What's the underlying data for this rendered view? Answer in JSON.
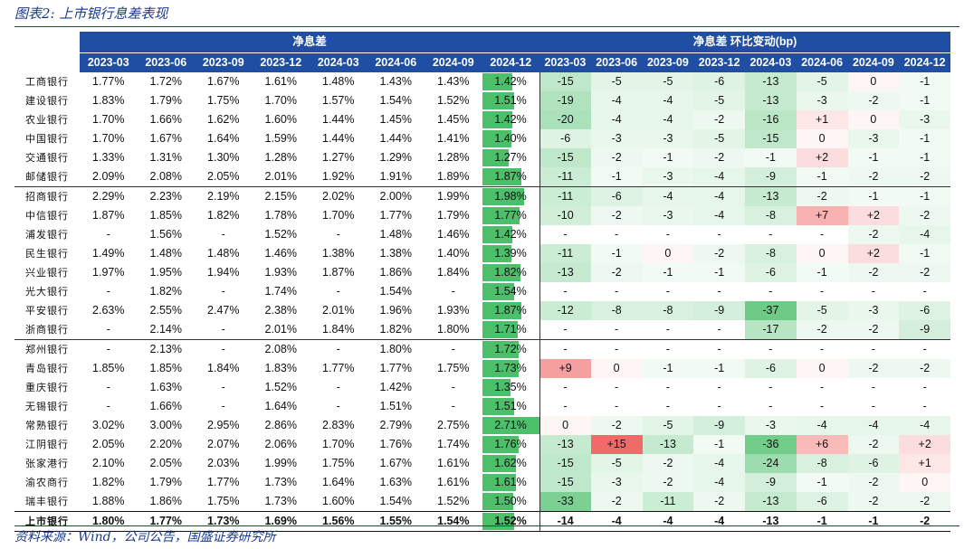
{
  "title": "图表2: 上市银行息差表现",
  "source": "资料来源：Wind，公司公告，国盛证券研究所",
  "header": {
    "nim_group": "净息差",
    "chg_group": "净息差 环比变动(bp)",
    "periods": [
      "2023-03",
      "2023-06",
      "2023-09",
      "2023-12",
      "2024-03",
      "2024-06",
      "2024-09",
      "2024-12"
    ]
  },
  "colors": {
    "header": "#1f4ea3",
    "bar": "#4cbf6b",
    "neg": "#4cbf6b",
    "pos": "#f05a5a"
  },
  "bar_scale": {
    "max_pct": 2.71
  },
  "groups": [
    [
      {
        "bank": "工商银行",
        "nim": [
          "1.77%",
          "1.72%",
          "1.67%",
          "1.61%",
          "1.48%",
          "1.43%",
          "1.43%",
          "1.42%"
        ],
        "chg": [
          "-15",
          "-5",
          "-5",
          "-6",
          "-13",
          "-5",
          "0",
          "-1"
        ]
      },
      {
        "bank": "建设银行",
        "nim": [
          "1.83%",
          "1.79%",
          "1.75%",
          "1.70%",
          "1.57%",
          "1.54%",
          "1.52%",
          "1.51%"
        ],
        "chg": [
          "-19",
          "-4",
          "-4",
          "-5",
          "-13",
          "-3",
          "-2",
          "-1"
        ]
      },
      {
        "bank": "农业银行",
        "nim": [
          "1.70%",
          "1.66%",
          "1.62%",
          "1.60%",
          "1.44%",
          "1.45%",
          "1.45%",
          "1.42%"
        ],
        "chg": [
          "-20",
          "-4",
          "-4",
          "-2",
          "-16",
          "+1",
          "0",
          "-3"
        ]
      },
      {
        "bank": "中国银行",
        "nim": [
          "1.70%",
          "1.67%",
          "1.64%",
          "1.59%",
          "1.44%",
          "1.44%",
          "1.41%",
          "1.40%"
        ],
        "chg": [
          "-6",
          "-3",
          "-3",
          "-5",
          "-15",
          "0",
          "-3",
          "-1"
        ]
      },
      {
        "bank": "交通银行",
        "nim": [
          "1.33%",
          "1.31%",
          "1.30%",
          "1.28%",
          "1.27%",
          "1.29%",
          "1.28%",
          "1.27%"
        ],
        "chg": [
          "-15",
          "-2",
          "-1",
          "-2",
          "-1",
          "+2",
          "-1",
          "-1"
        ]
      },
      {
        "bank": "邮储银行",
        "nim": [
          "2.09%",
          "2.08%",
          "2.05%",
          "2.01%",
          "1.92%",
          "1.91%",
          "1.89%",
          "1.87%"
        ],
        "chg": [
          "-11",
          "-1",
          "-3",
          "-4",
          "-9",
          "-1",
          "-2",
          "-2"
        ]
      }
    ],
    [
      {
        "bank": "招商银行",
        "nim": [
          "2.29%",
          "2.23%",
          "2.19%",
          "2.15%",
          "2.02%",
          "2.00%",
          "1.99%",
          "1.98%"
        ],
        "chg": [
          "-11",
          "-6",
          "-4",
          "-4",
          "-13",
          "-2",
          "-1",
          "-1"
        ]
      },
      {
        "bank": "中信银行",
        "nim": [
          "1.87%",
          "1.85%",
          "1.82%",
          "1.78%",
          "1.70%",
          "1.77%",
          "1.79%",
          "1.77%"
        ],
        "chg": [
          "-10",
          "-2",
          "-3",
          "-4",
          "-8",
          "+7",
          "+2",
          "-2"
        ]
      },
      {
        "bank": "浦发银行",
        "nim": [
          "-",
          "1.56%",
          "-",
          "1.52%",
          "-",
          "1.48%",
          "1.46%",
          "1.42%"
        ],
        "chg": [
          "-",
          "-",
          "-",
          "-",
          "-",
          "-",
          "-2",
          "-4"
        ]
      },
      {
        "bank": "民生银行",
        "nim": [
          "1.49%",
          "1.48%",
          "1.48%",
          "1.46%",
          "1.38%",
          "1.38%",
          "1.40%",
          "1.39%"
        ],
        "chg": [
          "-11",
          "-1",
          "0",
          "-2",
          "-8",
          "0",
          "+2",
          "-1"
        ]
      },
      {
        "bank": "兴业银行",
        "nim": [
          "1.97%",
          "1.95%",
          "1.94%",
          "1.93%",
          "1.87%",
          "1.86%",
          "1.84%",
          "1.82%"
        ],
        "chg": [
          "-13",
          "-2",
          "-1",
          "-1",
          "-6",
          "-1",
          "-2",
          "-2"
        ]
      },
      {
        "bank": "光大银行",
        "nim": [
          "-",
          "1.82%",
          "-",
          "1.74%",
          "-",
          "1.54%",
          "-",
          "1.54%"
        ],
        "chg": [
          "-",
          "-",
          "-",
          "-",
          "-",
          "-",
          "-",
          "-"
        ]
      },
      {
        "bank": "平安银行",
        "nim": [
          "2.63%",
          "2.55%",
          "2.47%",
          "2.38%",
          "2.01%",
          "1.96%",
          "1.93%",
          "1.87%"
        ],
        "chg": [
          "-12",
          "-8",
          "-8",
          "-9",
          "-37",
          "-5",
          "-3",
          "-6"
        ]
      },
      {
        "bank": "浙商银行",
        "nim": [
          "-",
          "2.14%",
          "-",
          "2.01%",
          "1.84%",
          "1.82%",
          "1.80%",
          "1.71%"
        ],
        "chg": [
          "-",
          "-",
          "-",
          "-",
          "-17",
          "-2",
          "-2",
          "-9"
        ]
      }
    ],
    [
      {
        "bank": "郑州银行",
        "nim": [
          "-",
          "2.13%",
          "-",
          "2.08%",
          "-",
          "1.80%",
          "-",
          "1.72%"
        ],
        "chg": [
          "-",
          "-",
          "-",
          "-",
          "-",
          "-",
          "-",
          "-"
        ]
      },
      {
        "bank": "青岛银行",
        "nim": [
          "1.85%",
          "1.85%",
          "1.84%",
          "1.83%",
          "1.77%",
          "1.77%",
          "1.75%",
          "1.73%"
        ],
        "chg": [
          "+9",
          "0",
          "-1",
          "-1",
          "-6",
          "0",
          "-2",
          "-2"
        ]
      },
      {
        "bank": "重庆银行",
        "nim": [
          "-",
          "1.63%",
          "-",
          "1.52%",
          "-",
          "1.42%",
          "-",
          "1.35%"
        ],
        "chg": [
          "-",
          "-",
          "-",
          "-",
          "-",
          "-",
          "-",
          "-"
        ]
      },
      {
        "bank": "无锡银行",
        "nim": [
          "-",
          "1.66%",
          "-",
          "1.64%",
          "-",
          "1.51%",
          "-",
          "1.51%"
        ],
        "chg": [
          "-",
          "-",
          "-",
          "-",
          "-",
          "-",
          "-",
          "-"
        ]
      },
      {
        "bank": "常熟银行",
        "nim": [
          "3.02%",
          "3.00%",
          "2.95%",
          "2.86%",
          "2.83%",
          "2.79%",
          "2.75%",
          "2.71%"
        ],
        "chg": [
          "0",
          "-2",
          "-5",
          "-9",
          "-3",
          "-4",
          "-4",
          "-4"
        ]
      },
      {
        "bank": "江阴银行",
        "nim": [
          "2.05%",
          "2.20%",
          "2.07%",
          "2.06%",
          "1.70%",
          "1.76%",
          "1.74%",
          "1.76%"
        ],
        "chg": [
          "-13",
          "+15",
          "-13",
          "-1",
          "-36",
          "+6",
          "-2",
          "+2"
        ]
      },
      {
        "bank": "张家港行",
        "nim": [
          "2.10%",
          "2.05%",
          "2.03%",
          "1.99%",
          "1.75%",
          "1.67%",
          "1.61%",
          "1.62%"
        ],
        "chg": [
          "-15",
          "-5",
          "-2",
          "-4",
          "-24",
          "-8",
          "-6",
          "+1"
        ]
      },
      {
        "bank": "渝农商行",
        "nim": [
          "1.82%",
          "1.79%",
          "1.77%",
          "1.73%",
          "1.64%",
          "1.63%",
          "1.61%",
          "1.61%"
        ],
        "chg": [
          "-15",
          "-3",
          "-2",
          "-4",
          "-9",
          "-1",
          "-2",
          "0"
        ]
      },
      {
        "bank": "瑞丰银行",
        "nim": [
          "1.88%",
          "1.86%",
          "1.75%",
          "1.73%",
          "1.60%",
          "1.54%",
          "1.52%",
          "1.50%"
        ],
        "chg": [
          "-33",
          "-2",
          "-11",
          "-2",
          "-13",
          "-6",
          "-2",
          "-2"
        ]
      }
    ]
  ],
  "total": {
    "bank": "上市银行",
    "nim": [
      "1.80%",
      "1.77%",
      "1.73%",
      "1.69%",
      "1.56%",
      "1.55%",
      "1.54%",
      "1.52%"
    ],
    "chg": [
      "-14",
      "-4",
      "-4",
      "-4",
      "-13",
      "-1",
      "-1",
      "-2"
    ]
  }
}
